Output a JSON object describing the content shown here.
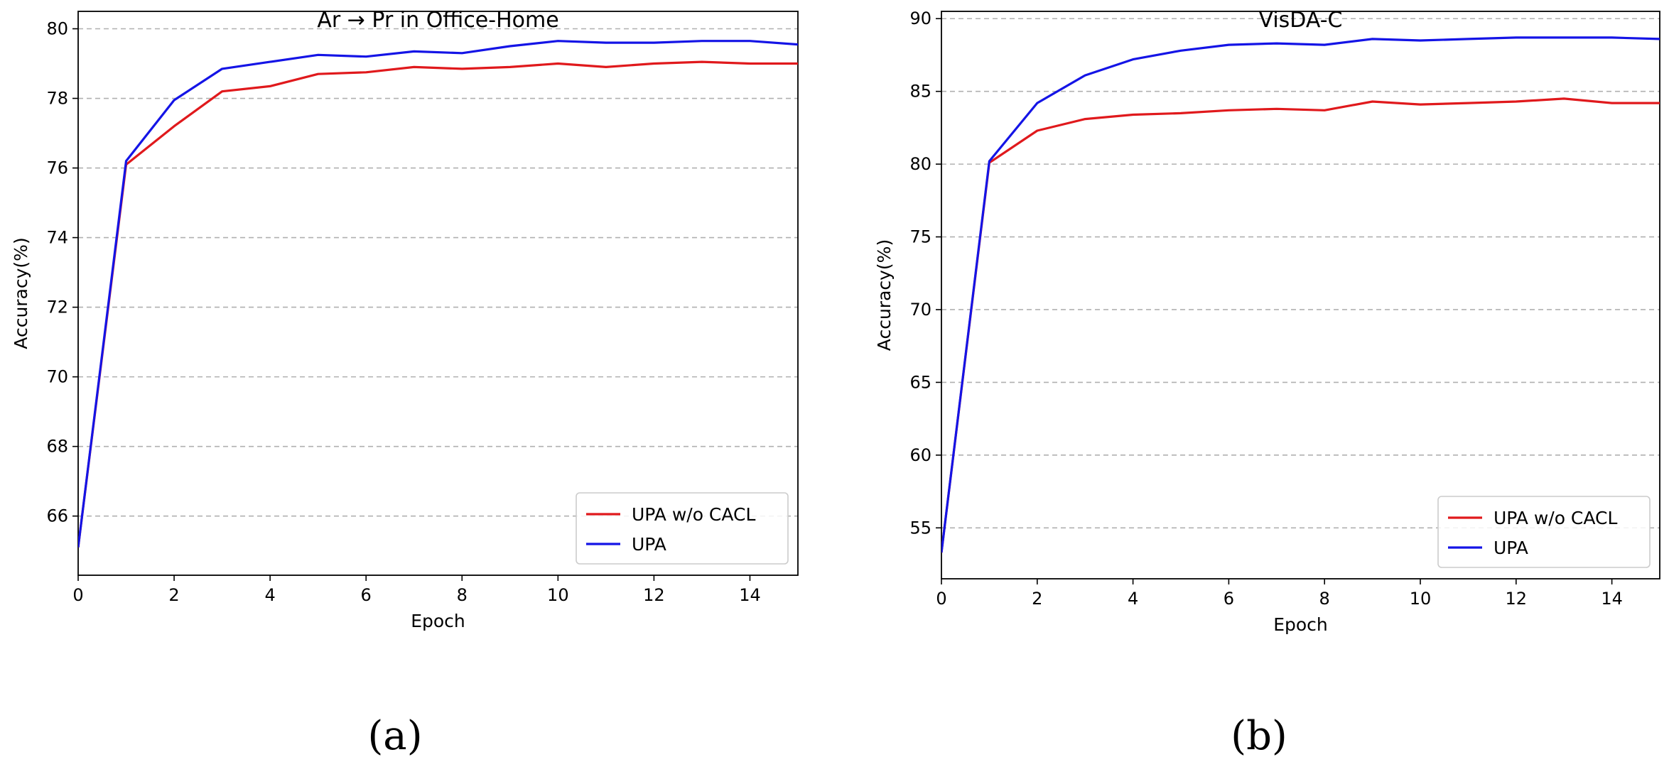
{
  "chart_data": [
    {
      "type": "line",
      "title": "Ar → Pr in Office-Home",
      "xlabel": "Epoch",
      "ylabel": "Accuracy(%)",
      "xlim": [
        0,
        15
      ],
      "ylim": [
        64.3,
        80.5
      ],
      "xticks": [
        0,
        2,
        4,
        6,
        8,
        10,
        12,
        14
      ],
      "yticks": [
        66,
        68,
        70,
        72,
        74,
        76,
        78,
        80
      ],
      "grid": "horizontal dashed",
      "legend_position": "lower right",
      "caption": "(a)",
      "x": [
        0,
        1,
        2,
        3,
        4,
        5,
        6,
        7,
        8,
        9,
        10,
        11,
        12,
        13,
        14,
        15
      ],
      "series": [
        {
          "name": "UPA w/o CACL",
          "color": "#e0191c",
          "values": [
            65.1,
            76.1,
            77.2,
            78.2,
            78.35,
            78.7,
            78.75,
            78.9,
            78.85,
            78.9,
            79.0,
            78.9,
            79.0,
            79.05,
            79.0,
            79.0
          ]
        },
        {
          "name": "UPA",
          "color": "#1414e6",
          "values": [
            65.1,
            76.2,
            77.95,
            78.85,
            79.05,
            79.25,
            79.2,
            79.35,
            79.3,
            79.5,
            79.65,
            79.6,
            79.6,
            79.65,
            79.65,
            79.55
          ]
        }
      ]
    },
    {
      "type": "line",
      "title": "VisDA-C",
      "xlabel": "Epoch",
      "ylabel": "Accuracy(%)",
      "xlim": [
        0,
        15
      ],
      "ylim": [
        51.5,
        90.5
      ],
      "xticks": [
        0,
        2,
        4,
        6,
        8,
        10,
        12,
        14
      ],
      "yticks": [
        55,
        60,
        65,
        70,
        75,
        80,
        85,
        90
      ],
      "grid": "horizontal dashed",
      "legend_position": "lower right",
      "caption": "(b)",
      "x": [
        0,
        1,
        2,
        3,
        4,
        5,
        6,
        7,
        8,
        9,
        10,
        11,
        12,
        13,
        14,
        15
      ],
      "series": [
        {
          "name": "UPA w/o CACL",
          "color": "#e0191c",
          "values": [
            53.3,
            80.1,
            82.3,
            83.1,
            83.4,
            83.5,
            83.7,
            83.8,
            83.7,
            84.3,
            84.1,
            84.2,
            84.3,
            84.5,
            84.2,
            84.2
          ]
        },
        {
          "name": "UPA",
          "color": "#1414e6",
          "values": [
            53.3,
            80.2,
            84.2,
            86.1,
            87.2,
            87.8,
            88.2,
            88.3,
            88.2,
            88.6,
            88.5,
            88.6,
            88.7,
            88.7,
            88.7,
            88.6
          ]
        }
      ]
    }
  ]
}
